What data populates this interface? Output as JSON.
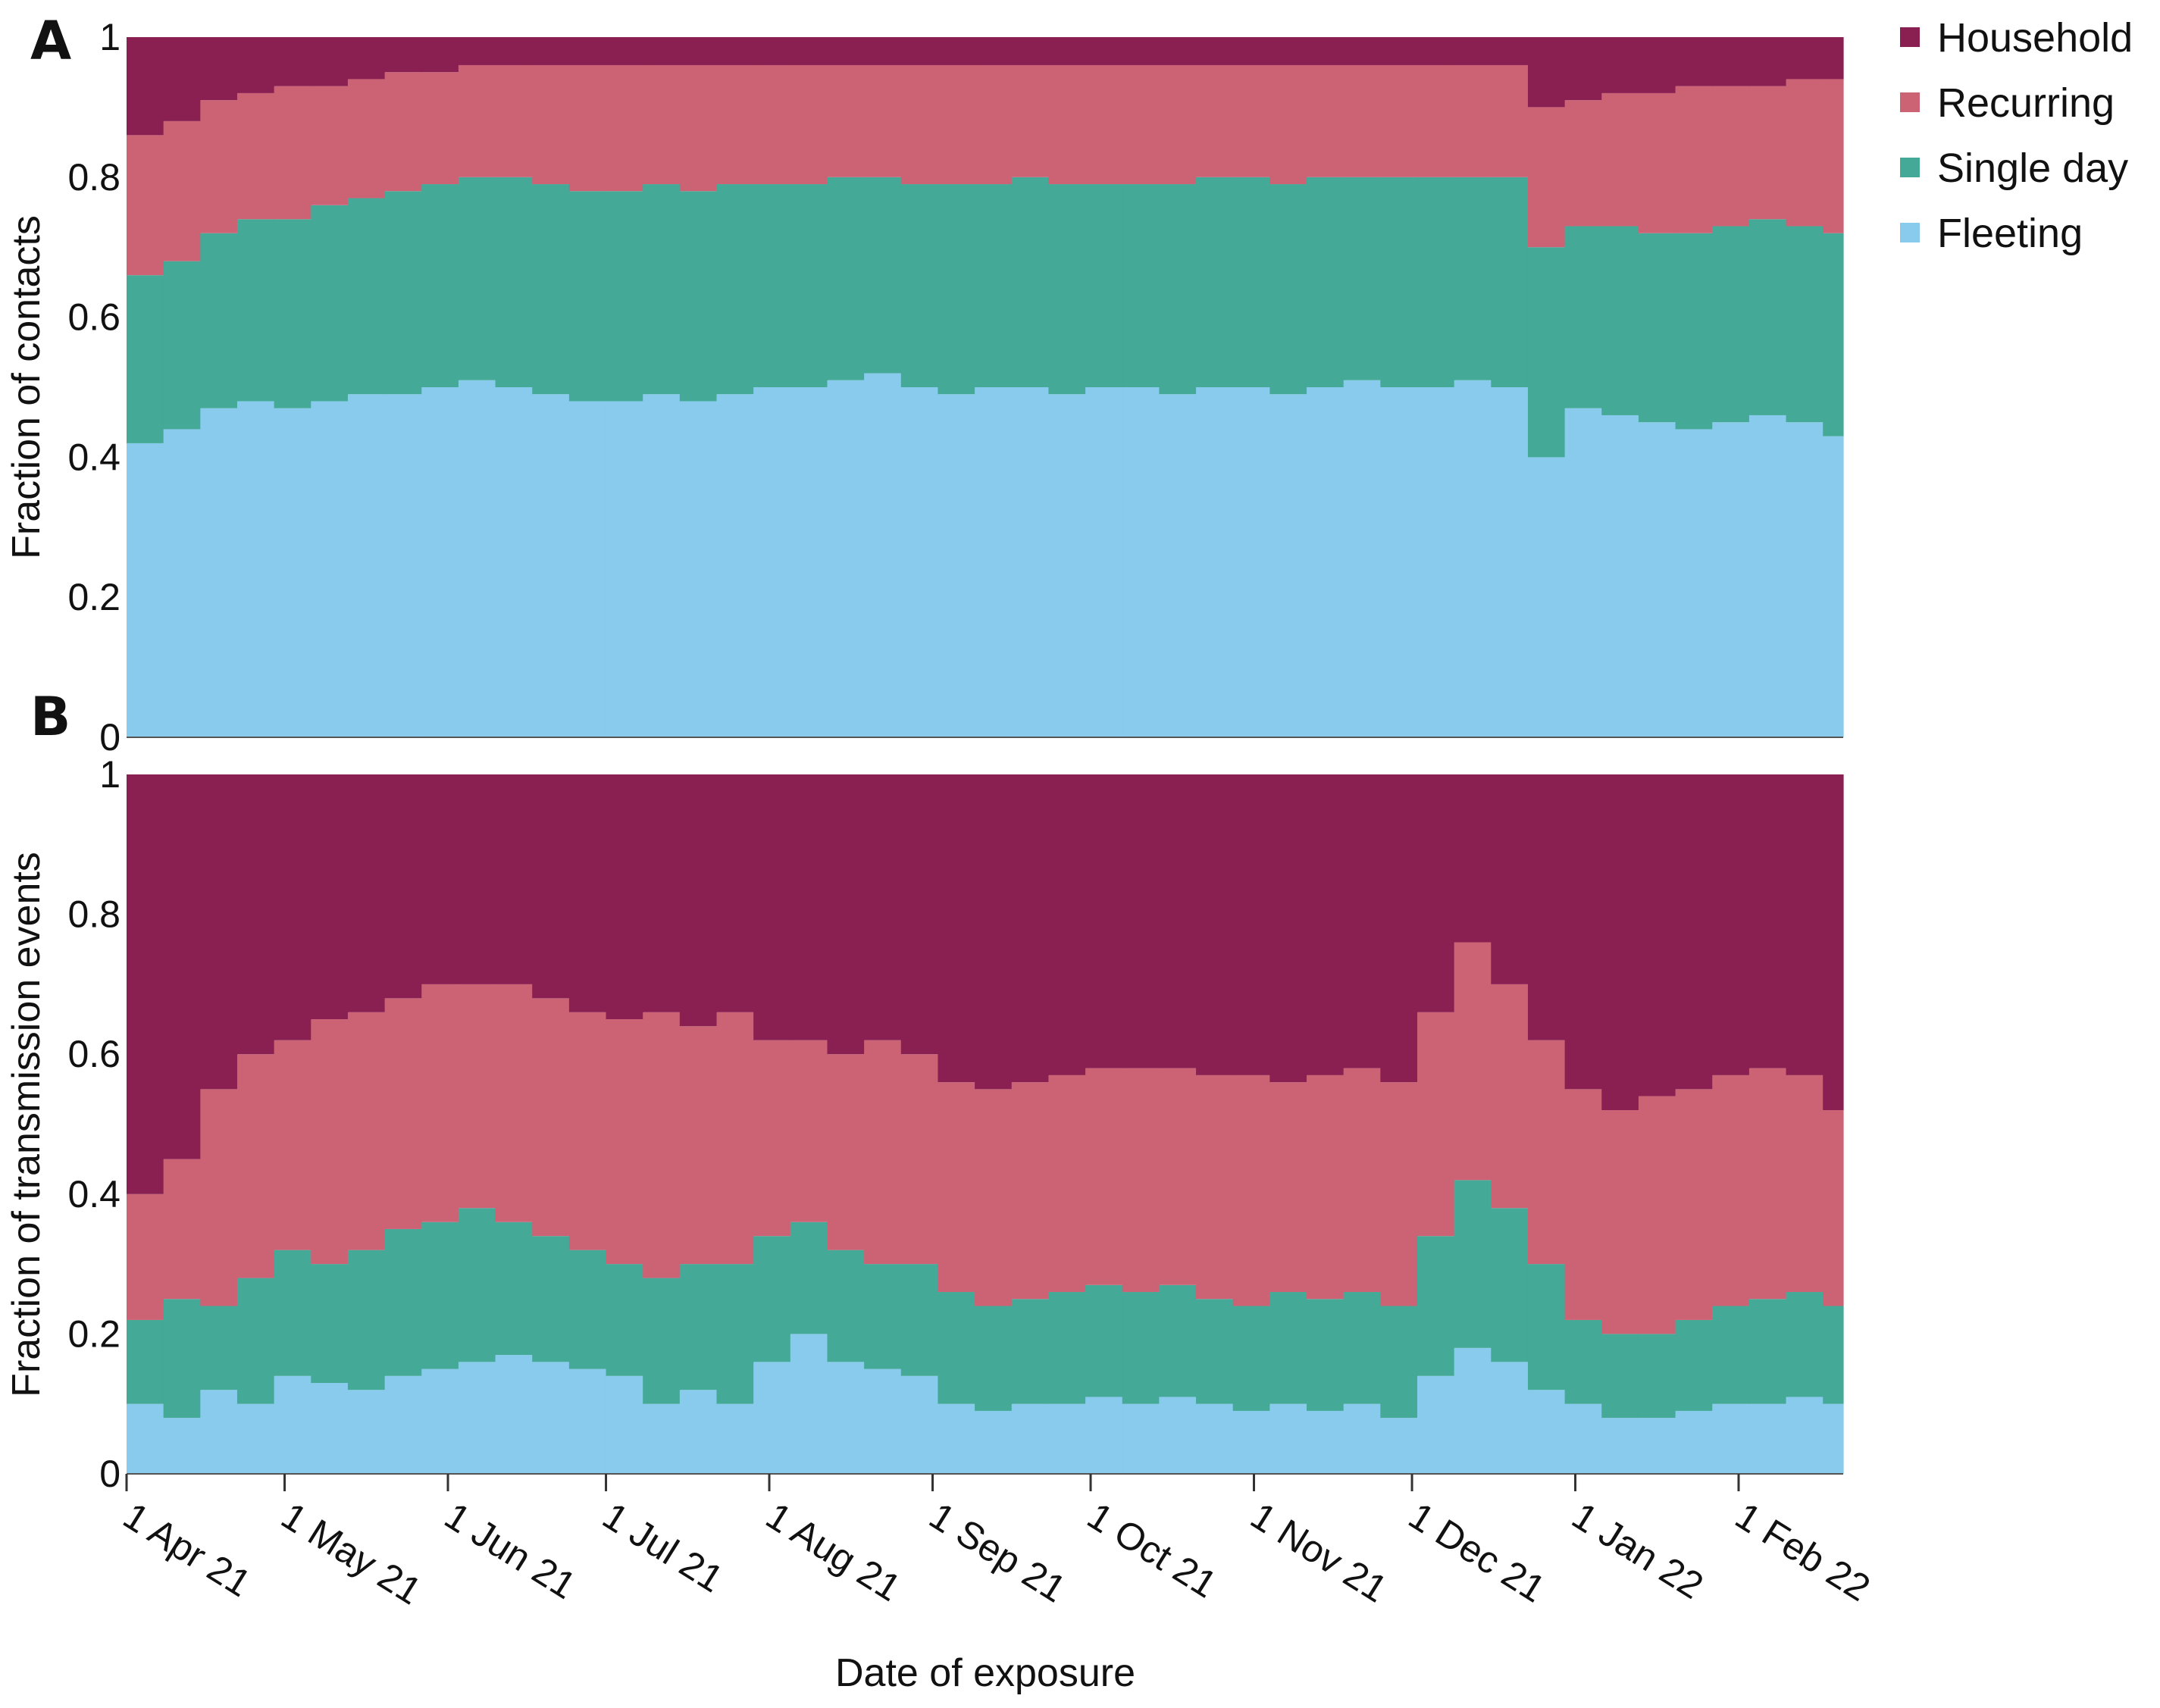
{
  "chart_data": {
    "type": "bar",
    "stacked": true,
    "x_resolution": "weekly (starting 1 Apr 21)",
    "xlabel": "Date of exposure",
    "x_tick_labels": [
      "1 Apr 21",
      "1 May 21",
      "1 Jun 21",
      "1 Jul 21",
      "1 Aug 21",
      "1 Sep 21",
      "1 Oct 21",
      "1 Nov 21",
      "1 Dec 21",
      "1 Jan 22",
      "1 Feb 22"
    ],
    "x_tick_day_offsets": [
      0,
      30,
      61,
      91,
      122,
      153,
      183,
      214,
      244,
      275,
      306
    ],
    "legend": {
      "placement": "top-right",
      "entries": [
        "Household",
        "Recurring",
        "Single day",
        "Fleeting"
      ]
    },
    "colors": {
      "Household": "#8a2051",
      "Recurring": "#cc6375",
      "Single day": "#45a998",
      "Fleeting": "#88cbed"
    },
    "panels": [
      {
        "label": "A",
        "ylabel": "Fraction of contacts",
        "ylim": [
          0,
          1
        ],
        "y_ticks": [
          "0",
          "0.2",
          "0.4",
          "0.6",
          "0.8",
          "1"
        ],
        "cumulative_tops": {
          "Fleeting": [
            0.42,
            0.44,
            0.47,
            0.48,
            0.47,
            0.48,
            0.49,
            0.49,
            0.5,
            0.51,
            0.5,
            0.49,
            0.48,
            0.48,
            0.49,
            0.48,
            0.49,
            0.5,
            0.5,
            0.51,
            0.52,
            0.5,
            0.49,
            0.5,
            0.5,
            0.49,
            0.5,
            0.5,
            0.49,
            0.5,
            0.5,
            0.49,
            0.5,
            0.51,
            0.5,
            0.5,
            0.51,
            0.5,
            0.4,
            0.47,
            0.46,
            0.45,
            0.44,
            0.45,
            0.46,
            0.45,
            0.43
          ],
          "Single day": [
            0.66,
            0.68,
            0.72,
            0.74,
            0.74,
            0.76,
            0.77,
            0.78,
            0.79,
            0.8,
            0.8,
            0.79,
            0.78,
            0.78,
            0.79,
            0.78,
            0.79,
            0.79,
            0.79,
            0.8,
            0.8,
            0.79,
            0.79,
            0.79,
            0.8,
            0.79,
            0.79,
            0.79,
            0.79,
            0.8,
            0.8,
            0.79,
            0.8,
            0.8,
            0.8,
            0.8,
            0.8,
            0.8,
            0.7,
            0.73,
            0.73,
            0.72,
            0.72,
            0.73,
            0.74,
            0.73,
            0.72
          ],
          "Recurring": [
            0.86,
            0.88,
            0.91,
            0.92,
            0.93,
            0.93,
            0.94,
            0.95,
            0.95,
            0.96,
            0.96,
            0.96,
            0.96,
            0.96,
            0.96,
            0.96,
            0.96,
            0.96,
            0.96,
            0.96,
            0.96,
            0.96,
            0.96,
            0.96,
            0.96,
            0.96,
            0.96,
            0.96,
            0.96,
            0.96,
            0.96,
            0.96,
            0.96,
            0.96,
            0.96,
            0.96,
            0.96,
            0.96,
            0.9,
            0.91,
            0.92,
            0.92,
            0.93,
            0.93,
            0.93,
            0.94,
            0.94
          ],
          "Household": [
            1,
            1,
            1,
            1,
            1,
            1,
            1,
            1,
            1,
            1,
            1,
            1,
            1,
            1,
            1,
            1,
            1,
            1,
            1,
            1,
            1,
            1,
            1,
            1,
            1,
            1,
            1,
            1,
            1,
            1,
            1,
            1,
            1,
            1,
            1,
            1,
            1,
            1,
            1,
            1,
            1,
            1,
            1,
            1,
            1,
            1,
            1
          ]
        }
      },
      {
        "label": "B",
        "ylabel": "Fraction of transmission events",
        "ylim": [
          0,
          1
        ],
        "y_ticks": [
          "0",
          "0.2",
          "0.4",
          "0.6",
          "0.8",
          "1"
        ],
        "cumulative_tops": {
          "Fleeting": [
            0.1,
            0.08,
            0.12,
            0.1,
            0.14,
            0.13,
            0.12,
            0.14,
            0.15,
            0.16,
            0.17,
            0.16,
            0.15,
            0.14,
            0.1,
            0.12,
            0.1,
            0.16,
            0.2,
            0.16,
            0.15,
            0.14,
            0.1,
            0.09,
            0.1,
            0.1,
            0.11,
            0.1,
            0.11,
            0.1,
            0.09,
            0.1,
            0.09,
            0.1,
            0.08,
            0.14,
            0.18,
            0.16,
            0.12,
            0.1,
            0.08,
            0.08,
            0.09,
            0.1,
            0.1,
            0.11,
            0.1
          ],
          "Single day": [
            0.22,
            0.25,
            0.24,
            0.28,
            0.32,
            0.3,
            0.32,
            0.35,
            0.36,
            0.38,
            0.36,
            0.34,
            0.32,
            0.3,
            0.28,
            0.3,
            0.3,
            0.34,
            0.36,
            0.32,
            0.3,
            0.3,
            0.26,
            0.24,
            0.25,
            0.26,
            0.27,
            0.26,
            0.27,
            0.25,
            0.24,
            0.26,
            0.25,
            0.26,
            0.24,
            0.34,
            0.42,
            0.38,
            0.3,
            0.22,
            0.2,
            0.2,
            0.22,
            0.24,
            0.25,
            0.26,
            0.24
          ],
          "Recurring": [
            0.4,
            0.45,
            0.55,
            0.6,
            0.62,
            0.65,
            0.66,
            0.68,
            0.7,
            0.7,
            0.7,
            0.68,
            0.66,
            0.65,
            0.66,
            0.64,
            0.66,
            0.62,
            0.62,
            0.6,
            0.62,
            0.6,
            0.56,
            0.55,
            0.56,
            0.57,
            0.58,
            0.58,
            0.58,
            0.57,
            0.57,
            0.56,
            0.57,
            0.58,
            0.56,
            0.66,
            0.76,
            0.7,
            0.62,
            0.55,
            0.52,
            0.54,
            0.55,
            0.57,
            0.58,
            0.57,
            0.52
          ],
          "Household": [
            1,
            1,
            1,
            1,
            1,
            1,
            1,
            1,
            1,
            1,
            1,
            1,
            1,
            1,
            1,
            1,
            1,
            1,
            1,
            1,
            1,
            1,
            1,
            1,
            1,
            1,
            1,
            1,
            1,
            1,
            1,
            1,
            1,
            1,
            1,
            1,
            1,
            1,
            1,
            1,
            1,
            1,
            1,
            1,
            1,
            1,
            1
          ]
        }
      }
    ]
  }
}
